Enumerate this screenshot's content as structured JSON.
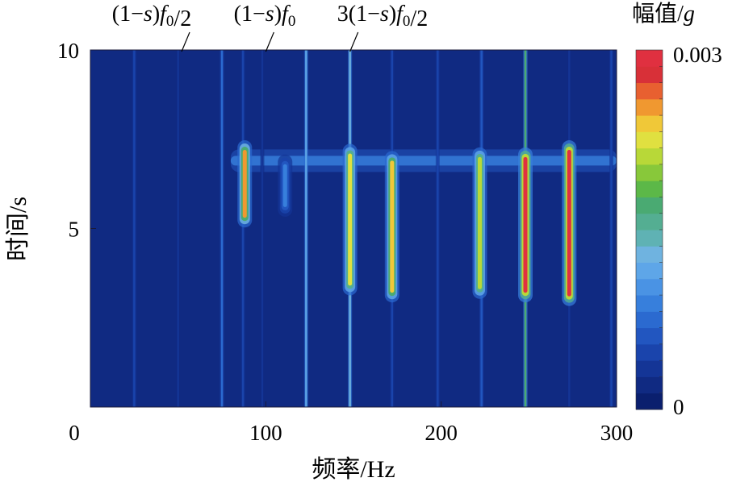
{
  "chart_data": {
    "type": "heatmap",
    "title": "",
    "xlabel": "频率/Hz",
    "ylabel": "时间/s",
    "xlim": [
      0,
      300
    ],
    "ylim": [
      0,
      10
    ],
    "x_ticks": [
      {
        "value": 0,
        "label": "0"
      },
      {
        "value": 100,
        "label": "100"
      },
      {
        "value": 200,
        "label": "200"
      },
      {
        "value": 300,
        "label": "300"
      }
    ],
    "y_ticks": [
      {
        "value": 5,
        "label": "5"
      },
      {
        "value": 10,
        "label": "10"
      }
    ],
    "colorbar": {
      "title_text": "幅值/",
      "title_var": "g",
      "min": 0,
      "max": 0.003,
      "min_label": "0",
      "max_label": "0.003",
      "colors": [
        "#0a1f6e",
        "#102a82",
        "#143596",
        "#1a44ac",
        "#2256c0",
        "#2b6ad0",
        "#377fdc",
        "#4a93e4",
        "#5ea6e8",
        "#6fb3e0",
        "#5fb2b4",
        "#54ae92",
        "#4aaa72",
        "#5cb848",
        "#88c83a",
        "#b8d838",
        "#e0e040",
        "#f0c838",
        "#f09830",
        "#e86030",
        "#d83038",
        "#e03040"
      ]
    },
    "annotations": [
      {
        "id": "half",
        "x": 52,
        "parts": [
          [
            "(1−",
            ""
          ],
          [
            "s",
            "i"
          ],
          [
            ")",
            ""
          ],
          [
            "f",
            "i"
          ],
          [
            "0",
            "sub"
          ],
          [
            "/2",
            ""
          ]
        ]
      },
      {
        "id": "full",
        "x": 100,
        "parts": [
          [
            "(1−",
            ""
          ],
          [
            "s",
            "i"
          ],
          [
            ")",
            ""
          ],
          [
            "f",
            "i"
          ],
          [
            "0",
            "sub"
          ]
        ]
      },
      {
        "id": "threehalf",
        "x": 148,
        "parts": [
          [
            "3(1−",
            ""
          ],
          [
            "s",
            "i"
          ],
          [
            ")",
            ""
          ],
          [
            "f",
            "i"
          ],
          [
            "0",
            "sub"
          ],
          [
            "/2",
            ""
          ]
        ]
      }
    ],
    "background_value": 0.0001,
    "lines": [
      {
        "f": 25,
        "level": 0.12
      },
      {
        "f": 50,
        "level": 0.1
      },
      {
        "f": 75,
        "level": 0.25
      },
      {
        "f": 87,
        "level": 0.12
      },
      {
        "f": 98,
        "level": 0.1
      },
      {
        "f": 123,
        "level": 0.4
      },
      {
        "f": 148,
        "level": 0.45
      },
      {
        "f": 172,
        "level": 0.12
      },
      {
        "f": 198,
        "level": 0.15
      },
      {
        "f": 223,
        "level": 0.2
      },
      {
        "f": 248,
        "level": 0.55
      },
      {
        "f": 273,
        "level": 0.1
      },
      {
        "f": 297,
        "level": 0.15
      }
    ],
    "streaks": [
      {
        "f": 88,
        "t0": 5.3,
        "t1": 7.2,
        "level": 0.85
      },
      {
        "f": 111,
        "t0": 5.6,
        "t1": 6.8,
        "level": 0.3
      },
      {
        "f": 148,
        "t0": 3.4,
        "t1": 7.1,
        "level": 0.75
      },
      {
        "f": 172,
        "t0": 3.2,
        "t1": 6.9,
        "level": 0.8
      },
      {
        "f": 222,
        "t0": 3.3,
        "t1": 7.0,
        "level": 0.72
      },
      {
        "f": 248,
        "t0": 3.2,
        "t1": 7.0,
        "level": 1.0
      },
      {
        "f": 273,
        "t0": 3.1,
        "t1": 7.2,
        "level": 1.0
      }
    ],
    "bands": [
      {
        "f0": 80,
        "f1": 300,
        "t": 6.9,
        "level": 0.28
      }
    ]
  }
}
